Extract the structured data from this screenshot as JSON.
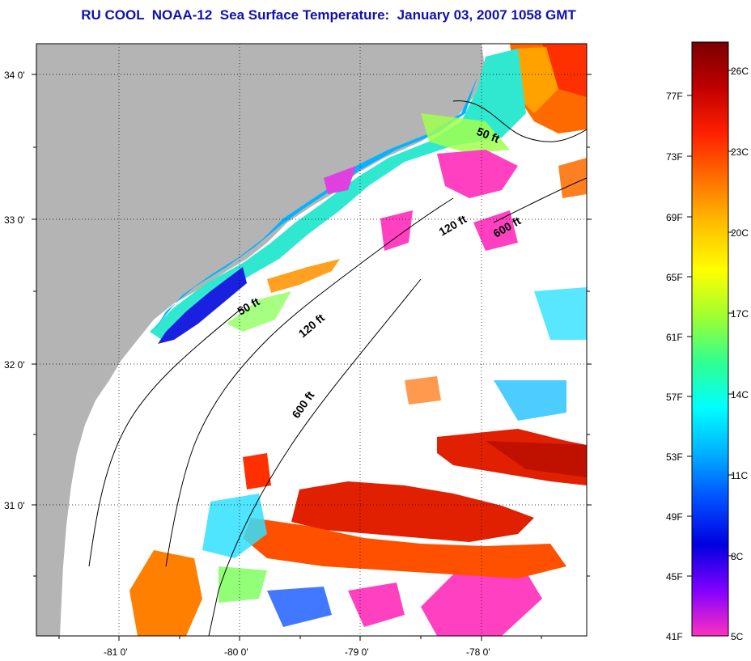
{
  "title": "RU COOL  NOAA-12  Sea Surface Temperature:  January 03, 2007 1058 GMT",
  "map": {
    "lon_labels": [
      "-81 0'",
      "-80 0'",
      "-79 0'",
      "-78 0'"
    ],
    "lat_labels": [
      "34 0'",
      "33 0'",
      "32 0'",
      "31 0'"
    ],
    "contour_labels": [
      {
        "text": "50 ft",
        "name": "contour-50ft-north"
      },
      {
        "text": "120 ft",
        "name": "contour-120ft-north"
      },
      {
        "text": "600 ft",
        "name": "contour-600ft-north"
      },
      {
        "text": "50 ft",
        "name": "contour-50ft-south"
      },
      {
        "text": "120 ft",
        "name": "contour-120ft-south"
      },
      {
        "text": "600 ft",
        "name": "contour-600ft-south"
      }
    ],
    "colors": {
      "land": "#b4b4b4",
      "cloud": "#ffffff",
      "grid": "#000000"
    }
  },
  "colorbar": {
    "fahrenheit_labels": [
      "77F",
      "73F",
      "69F",
      "65F",
      "61F",
      "57F",
      "53F",
      "49F",
      "45F",
      "41F"
    ],
    "celsius_labels": [
      "26C",
      "23C",
      "20C",
      "17C",
      "14C",
      "11C",
      "8C",
      "5C"
    ],
    "gradient_top_to_bottom": [
      "#7a0000",
      "#c00000",
      "#ff2000",
      "#ff7000",
      "#ffc000",
      "#ffff00",
      "#a0ff30",
      "#30ff90",
      "#00ffff",
      "#00b0ff",
      "#0050ff",
      "#0000e0",
      "#8000ff",
      "#ff30c0"
    ]
  }
}
